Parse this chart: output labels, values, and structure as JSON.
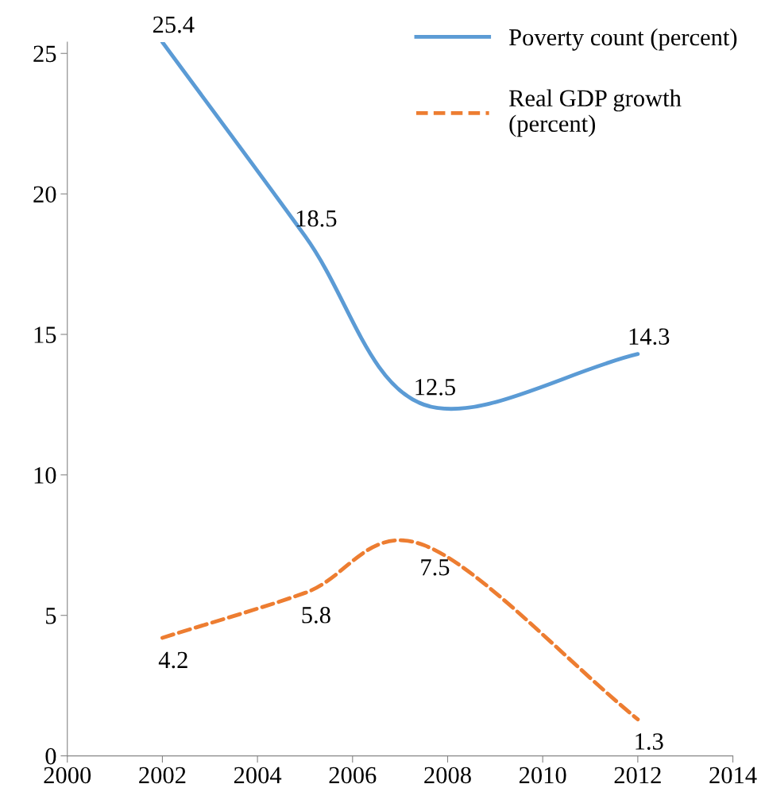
{
  "chart_data": {
    "type": "line",
    "x": [
      2002,
      2005,
      2007.5,
      2012
    ],
    "series": [
      {
        "name": "Poverty count (percent)",
        "color": "#5b9bd5",
        "values": [
          25.4,
          18.5,
          12.5,
          14.3
        ],
        "line_style": "solid"
      },
      {
        "name": "Real GDP growth\n(percent)",
        "color": "#ed7d31",
        "values": [
          4.2,
          5.8,
          7.5,
          1.3
        ],
        "line_style": "dashed"
      }
    ],
    "xlim": [
      2000,
      2014
    ],
    "xticks": [
      2000,
      2002,
      2004,
      2006,
      2008,
      2010,
      2012,
      2014
    ],
    "ylim": [
      0,
      25.4
    ],
    "yticks": [
      0,
      5,
      10,
      15,
      20,
      25
    ],
    "data_labels": true,
    "grid": false,
    "legend": "top right"
  }
}
